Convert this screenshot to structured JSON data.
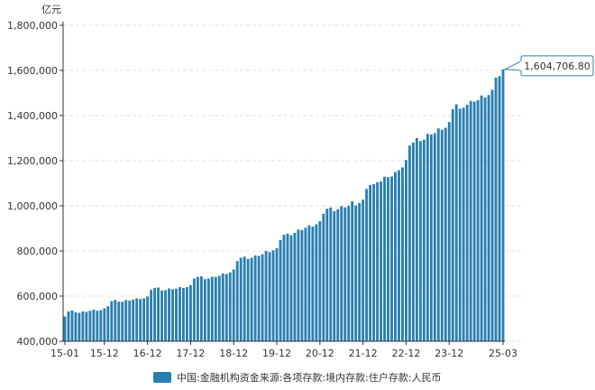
{
  "chart_data": {
    "type": "bar",
    "unit": "亿元",
    "x_tick_labels": [
      "15-01",
      "15-12",
      "16-12",
      "17-12",
      "18-12",
      "19-12",
      "20-12",
      "21-12",
      "22-12",
      "23-12",
      "25-03"
    ],
    "ylim": [
      400000,
      1800000
    ],
    "y_ticks": [
      400000,
      600000,
      800000,
      1000000,
      1200000,
      1400000,
      1600000,
      1800000
    ],
    "y_tick_labels": [
      "400,000",
      "600,000",
      "800,000",
      "1,000,000",
      "1,200,000",
      "1,400,000",
      "1,600,000",
      "1,800,000"
    ],
    "grid": true,
    "legend_position": "bottom",
    "colors": {
      "bar": "#2a7fb0",
      "axis": "#333333",
      "grid": "#e0e0e0"
    },
    "series": [
      {
        "name": "中国:金融机构资金来源:各项存款:境内存款:住户存款:人民币",
        "x": [
          "15-01",
          "15-02",
          "15-03",
          "15-04",
          "15-05",
          "15-06",
          "15-07",
          "15-08",
          "15-09",
          "15-10",
          "15-11",
          "15-12",
          "16-01",
          "16-02",
          "16-03",
          "16-04",
          "16-05",
          "16-06",
          "16-07",
          "16-08",
          "16-09",
          "16-10",
          "16-11",
          "16-12",
          "17-01",
          "17-02",
          "17-03",
          "17-04",
          "17-05",
          "17-06",
          "17-07",
          "17-08",
          "17-09",
          "17-10",
          "17-11",
          "17-12",
          "18-01",
          "18-02",
          "18-03",
          "18-04",
          "18-05",
          "18-06",
          "18-07",
          "18-08",
          "18-09",
          "18-10",
          "18-11",
          "18-12",
          "19-01",
          "19-02",
          "19-03",
          "19-04",
          "19-05",
          "19-06",
          "19-07",
          "19-08",
          "19-09",
          "19-10",
          "19-11",
          "19-12",
          "20-01",
          "20-02",
          "20-03",
          "20-04",
          "20-05",
          "20-06",
          "20-07",
          "20-08",
          "20-09",
          "20-10",
          "20-11",
          "20-12",
          "21-01",
          "21-02",
          "21-03",
          "21-04",
          "21-05",
          "21-06",
          "21-07",
          "21-08",
          "21-09",
          "21-10",
          "21-11",
          "21-12",
          "22-01",
          "22-02",
          "22-03",
          "22-04",
          "22-05",
          "22-06",
          "22-07",
          "22-08",
          "22-09",
          "22-10",
          "22-11",
          "22-12",
          "23-01",
          "23-02",
          "23-03",
          "23-04",
          "23-05",
          "23-06",
          "23-07",
          "23-08",
          "23-09",
          "23-10",
          "23-11",
          "23-12",
          "24-01",
          "24-02",
          "24-03",
          "24-04",
          "24-05",
          "24-06",
          "24-07",
          "24-08",
          "24-09",
          "24-10",
          "24-11",
          "24-12",
          "25-01",
          "25-02",
          "25-03"
        ],
        "values": [
          510000,
          532000,
          536000,
          528000,
          526000,
          532000,
          530000,
          535000,
          540000,
          535000,
          538000,
          546000,
          555000,
          578000,
          583000,
          575000,
          575000,
          583000,
          580000,
          585000,
          590000,
          587000,
          590000,
          598000,
          628000,
          636000,
          638000,
          625000,
          626000,
          634000,
          630000,
          633000,
          640000,
          636000,
          640000,
          648000,
          678000,
          685000,
          688000,
          675000,
          678000,
          686000,
          685000,
          690000,
          700000,
          698000,
          705000,
          718000,
          755000,
          770000,
          775000,
          765000,
          770000,
          780000,
          778000,
          785000,
          800000,
          795000,
          803000,
          812000,
          848000,
          872000,
          877000,
          870000,
          880000,
          895000,
          893000,
          903000,
          914000,
          908000,
          918000,
          932000,
          965000,
          987000,
          993000,
          976000,
          985000,
          999000,
          993000,
          1000000,
          1020000,
          1002000,
          1012000,
          1027000,
          1075000,
          1092000,
          1096000,
          1104000,
          1108000,
          1129000,
          1127000,
          1130000,
          1150000,
          1158000,
          1170000,
          1203000,
          1267000,
          1280000,
          1300000,
          1287000,
          1293000,
          1319000,
          1316000,
          1322000,
          1343000,
          1337000,
          1346000,
          1371000,
          1428000,
          1450000,
          1430000,
          1435000,
          1448000,
          1465000,
          1462000,
          1468000,
          1489000,
          1480000,
          1491000,
          1514000,
          1568000,
          1575000,
          1604706.8
        ]
      }
    ],
    "annotation": {
      "label": "1,604,706.80"
    }
  }
}
